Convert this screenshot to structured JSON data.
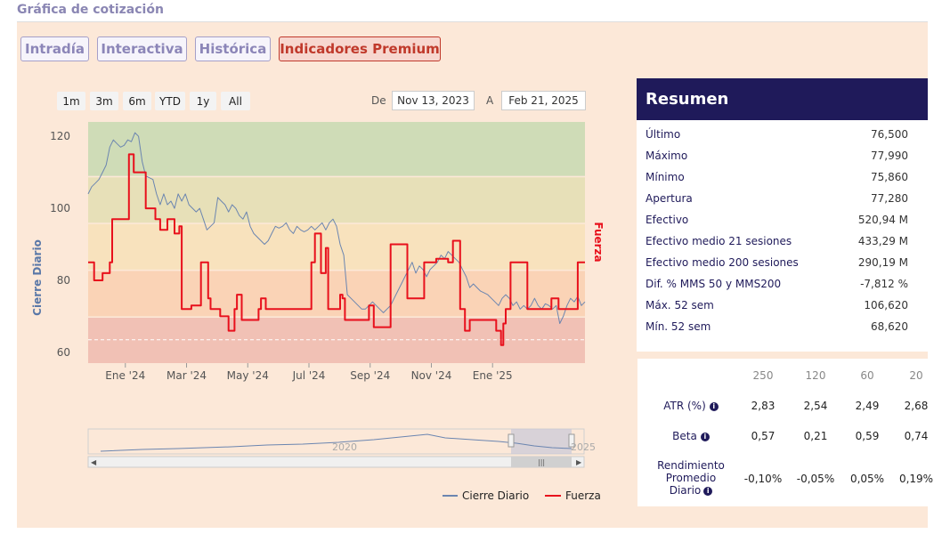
{
  "page": {
    "title": "Gráfica de cotización"
  },
  "tabs": [
    {
      "label": "Intradía",
      "active": false
    },
    {
      "label": "Interactiva",
      "active": false
    },
    {
      "label": "Histórica",
      "active": false
    },
    {
      "label": "Indicadores Premium",
      "active": true
    }
  ],
  "range_buttons": [
    "1m",
    "3m",
    "6m",
    "YTD",
    "1y",
    "All"
  ],
  "date_range": {
    "from_label": "De",
    "from": "Nov 13, 2023",
    "to_label": "A",
    "to": "Feb 21, 2025"
  },
  "chart_data": {
    "type": "line",
    "x_ticks": [
      "Ene '24",
      "Mar '24",
      "May '24",
      "Jul '24",
      "Sep '24",
      "Nov '24",
      "Ene '25"
    ],
    "ylabel": "Cierre Diario",
    "y2label": "Fuerza",
    "ylim": [
      57,
      124
    ],
    "y_ticks": [
      60,
      80,
      100,
      120
    ],
    "zones_colors": [
      "#cfdcb7",
      "#e7e0b8",
      "#f8e2bd",
      "#fad3b6",
      "#f1c1b5"
    ],
    "legend": [
      "Cierre Diario",
      "Fuerza"
    ],
    "legend_position": "bottom-right",
    "series": [
      {
        "name": "Cierre Diario",
        "color": "#6b85b0",
        "points": [
          [
            0,
            104
          ],
          [
            3,
            106
          ],
          [
            6,
            107
          ],
          [
            9,
            108
          ],
          [
            12,
            110
          ],
          [
            15,
            112
          ],
          [
            18,
            117
          ],
          [
            21,
            119
          ],
          [
            24,
            118
          ],
          [
            27,
            117
          ],
          [
            30,
            117.5
          ],
          [
            33,
            119
          ],
          [
            36,
            118.5
          ],
          [
            39,
            121
          ],
          [
            42,
            120
          ],
          [
            45,
            113
          ],
          [
            48,
            109
          ],
          [
            51,
            108.5
          ],
          [
            54,
            108
          ],
          [
            57,
            104
          ],
          [
            60,
            101
          ],
          [
            63,
            104
          ],
          [
            66,
            101
          ],
          [
            69,
            102
          ],
          [
            72,
            100
          ],
          [
            75,
            104
          ],
          [
            78,
            102
          ],
          [
            81,
            104
          ],
          [
            84,
            101
          ],
          [
            87,
            100
          ],
          [
            90,
            99
          ],
          [
            93,
            100
          ],
          [
            96,
            97
          ],
          [
            99,
            94
          ],
          [
            102,
            95
          ],
          [
            105,
            96
          ],
          [
            108,
            103
          ],
          [
            111,
            102
          ],
          [
            114,
            101
          ],
          [
            117,
            99
          ],
          [
            120,
            101
          ],
          [
            123,
            100
          ],
          [
            126,
            98
          ],
          [
            129,
            97
          ],
          [
            132,
            99
          ],
          [
            135,
            95
          ],
          [
            138,
            93
          ],
          [
            141,
            92
          ],
          [
            144,
            91
          ],
          [
            147,
            90
          ],
          [
            150,
            91
          ],
          [
            153,
            93
          ],
          [
            156,
            95
          ],
          [
            159,
            94.5
          ],
          [
            162,
            95
          ],
          [
            165,
            96
          ],
          [
            168,
            94
          ],
          [
            171,
            93
          ],
          [
            174,
            95
          ],
          [
            177,
            94
          ],
          [
            180,
            93.5
          ],
          [
            183,
            94
          ],
          [
            186,
            95
          ],
          [
            189,
            94
          ],
          [
            192,
            95
          ],
          [
            195,
            96
          ],
          [
            198,
            94
          ],
          [
            201,
            96
          ],
          [
            204,
            97
          ],
          [
            207,
            95
          ],
          [
            210,
            90
          ],
          [
            213,
            87
          ],
          [
            216,
            76
          ],
          [
            219,
            75
          ],
          [
            222,
            74
          ],
          [
            225,
            73
          ],
          [
            228,
            72
          ],
          [
            231,
            72
          ],
          [
            234,
            73
          ],
          [
            237,
            74
          ],
          [
            240,
            73
          ],
          [
            243,
            72
          ],
          [
            246,
            71
          ],
          [
            249,
            72
          ],
          [
            252,
            73
          ],
          [
            255,
            75
          ],
          [
            258,
            77
          ],
          [
            261,
            79
          ],
          [
            264,
            81
          ],
          [
            267,
            83
          ],
          [
            270,
            85
          ],
          [
            273,
            82
          ],
          [
            276,
            84
          ],
          [
            279,
            83
          ],
          [
            282,
            81
          ],
          [
            285,
            83
          ],
          [
            288,
            84
          ],
          [
            291,
            85
          ],
          [
            294,
            87
          ],
          [
            297,
            86
          ],
          [
            300,
            88
          ],
          [
            303,
            87
          ],
          [
            306,
            86
          ],
          [
            309,
            85
          ],
          [
            312,
            83
          ],
          [
            315,
            81
          ],
          [
            318,
            78
          ],
          [
            321,
            79
          ],
          [
            324,
            78
          ],
          [
            327,
            77
          ],
          [
            330,
            76.5
          ],
          [
            333,
            76
          ],
          [
            336,
            75
          ],
          [
            339,
            74
          ],
          [
            342,
            73
          ],
          [
            345,
            75
          ],
          [
            348,
            76
          ],
          [
            351,
            75
          ],
          [
            354,
            73
          ],
          [
            357,
            74
          ],
          [
            360,
            72
          ],
          [
            363,
            73
          ],
          [
            366,
            72
          ],
          [
            369,
            73
          ],
          [
            372,
            75
          ],
          [
            375,
            73
          ],
          [
            378,
            72
          ],
          [
            381,
            73.5
          ],
          [
            384,
            73
          ],
          [
            387,
            72
          ],
          [
            390,
            73
          ],
          [
            393,
            68
          ],
          [
            396,
            70
          ],
          [
            399,
            73
          ],
          [
            402,
            75
          ],
          [
            405,
            74
          ],
          [
            408,
            75.5
          ],
          [
            411,
            73
          ],
          [
            414,
            74
          ]
        ]
      },
      {
        "name": "Fuerza",
        "color": "#e8101c",
        "points": [
          [
            0,
            85
          ],
          [
            5,
            85
          ],
          [
            5,
            80
          ],
          [
            12,
            80
          ],
          [
            12,
            82
          ],
          [
            18,
            82
          ],
          [
            18,
            85
          ],
          [
            20,
            85
          ],
          [
            20,
            97
          ],
          [
            34,
            97
          ],
          [
            34,
            115
          ],
          [
            38,
            115
          ],
          [
            38,
            110
          ],
          [
            48,
            110
          ],
          [
            48,
            100
          ],
          [
            56,
            100
          ],
          [
            56,
            97
          ],
          [
            60,
            97
          ],
          [
            60,
            94
          ],
          [
            66,
            94
          ],
          [
            66,
            97
          ],
          [
            72,
            97
          ],
          [
            72,
            93
          ],
          [
            76,
            93
          ],
          [
            76,
            95
          ],
          [
            78,
            95
          ],
          [
            78,
            72
          ],
          [
            86,
            72
          ],
          [
            86,
            73
          ],
          [
            94,
            73
          ],
          [
            94,
            85
          ],
          [
            100,
            85
          ],
          [
            100,
            75
          ],
          [
            102,
            75
          ],
          [
            102,
            72
          ],
          [
            110,
            72
          ],
          [
            110,
            70
          ],
          [
            117,
            70
          ],
          [
            117,
            66
          ],
          [
            122,
            66
          ],
          [
            122,
            72
          ],
          [
            124,
            72
          ],
          [
            124,
            76
          ],
          [
            128,
            76
          ],
          [
            128,
            69
          ],
          [
            142,
            69
          ],
          [
            142,
            72
          ],
          [
            144,
            72
          ],
          [
            144,
            75
          ],
          [
            148,
            75
          ],
          [
            148,
            72
          ],
          [
            186,
            72
          ],
          [
            186,
            85
          ],
          [
            189,
            85
          ],
          [
            189,
            93
          ],
          [
            194,
            93
          ],
          [
            194,
            82
          ],
          [
            198,
            82
          ],
          [
            198,
            89
          ],
          [
            200,
            89
          ],
          [
            200,
            72
          ],
          [
            210,
            72
          ],
          [
            210,
            76
          ],
          [
            212,
            76
          ],
          [
            212,
            75
          ],
          [
            214,
            75
          ],
          [
            214,
            69
          ],
          [
            234,
            69
          ],
          [
            234,
            73
          ],
          [
            238,
            73
          ],
          [
            238,
            67
          ],
          [
            252,
            67
          ],
          [
            252,
            90
          ],
          [
            266,
            90
          ],
          [
            266,
            75
          ],
          [
            280,
            75
          ],
          [
            280,
            85
          ],
          [
            290,
            85
          ],
          [
            290,
            86
          ],
          [
            300,
            86
          ],
          [
            300,
            85
          ],
          [
            304,
            85
          ],
          [
            304,
            91
          ],
          [
            310,
            91
          ],
          [
            310,
            72
          ],
          [
            314,
            72
          ],
          [
            314,
            66
          ],
          [
            318,
            66
          ],
          [
            318,
            69
          ],
          [
            340,
            69
          ],
          [
            340,
            66
          ],
          [
            344,
            66
          ],
          [
            344,
            62
          ],
          [
            346,
            62
          ],
          [
            346,
            68
          ],
          [
            348,
            68
          ],
          [
            348,
            72
          ],
          [
            352,
            72
          ],
          [
            352,
            85
          ],
          [
            366,
            85
          ],
          [
            366,
            72
          ],
          [
            386,
            72
          ],
          [
            386,
            75
          ],
          [
            392,
            75
          ],
          [
            392,
            72
          ],
          [
            408,
            72
          ],
          [
            408,
            85
          ],
          [
            414,
            85
          ]
        ]
      }
    ]
  },
  "navigator": {
    "labels": [
      "2020",
      "2025"
    ]
  },
  "summary": {
    "title": "Resumen",
    "rows": [
      {
        "label": "Último",
        "value": "76,500"
      },
      {
        "label": "Máximo",
        "value": "77,990"
      },
      {
        "label": "Mínimo",
        "value": "75,860"
      },
      {
        "label": "Apertura",
        "value": "77,280"
      },
      {
        "label": "Efectivo",
        "value": "520,94 M"
      },
      {
        "label": "Efectivo medio 21 sesiones",
        "value": "433,29 M"
      },
      {
        "label": "Efectivo medio 200 sesiones",
        "value": "290,19 M"
      },
      {
        "label": "Dif. % MMS 50 y MMS200",
        "value": "-7,812 %"
      },
      {
        "label": "Máx. 52 sem",
        "value": "106,620"
      },
      {
        "label": "Mín. 52 sem",
        "value": "68,620"
      }
    ]
  },
  "stats": {
    "headers": [
      "250",
      "120",
      "60",
      "20"
    ],
    "rows": [
      {
        "label": "ATR (%)",
        "values": [
          "2,83",
          "2,54",
          "2,49",
          "2,68"
        ]
      },
      {
        "label": "Beta",
        "values": [
          "0,57",
          "0,21",
          "0,59",
          "0,74"
        ]
      },
      {
        "label_lines": [
          "Rendimiento",
          "Promedio",
          "Diario"
        ],
        "values": [
          "-0,10%",
          "-0,05%",
          "0,05%",
          "0,19%"
        ]
      }
    ]
  }
}
